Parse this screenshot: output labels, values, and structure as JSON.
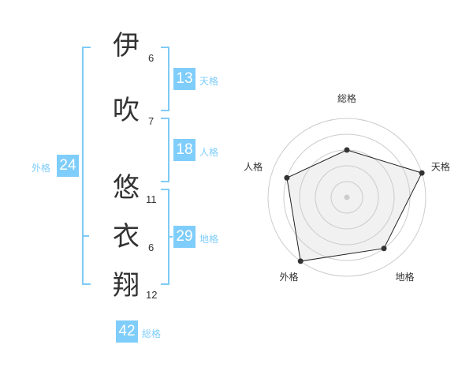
{
  "name": [
    {
      "char": "伊",
      "strokes": "6"
    },
    {
      "char": "吹",
      "strokes": "7"
    },
    {
      "char": "悠",
      "strokes": "11"
    },
    {
      "char": "衣",
      "strokes": "6"
    },
    {
      "char": "翔",
      "strokes": "12"
    }
  ],
  "fortunes": {
    "tenkaku": {
      "label": "天格",
      "value": "13"
    },
    "jinkaku": {
      "label": "人格",
      "value": "18"
    },
    "chikaku": {
      "label": "地格",
      "value": "29"
    },
    "gaikaku": {
      "label": "外格",
      "value": "24"
    },
    "soukaku": {
      "label": "総格",
      "value": "42"
    }
  },
  "colors": {
    "accent": "#7fcdfa"
  },
  "chart_data": {
    "type": "radar",
    "axes": [
      "総格",
      "天格",
      "地格",
      "外格",
      "人格"
    ],
    "values": [
      3,
      5,
      4,
      5,
      4
    ],
    "range": [
      0,
      5
    ],
    "grid": "concentric circles"
  }
}
